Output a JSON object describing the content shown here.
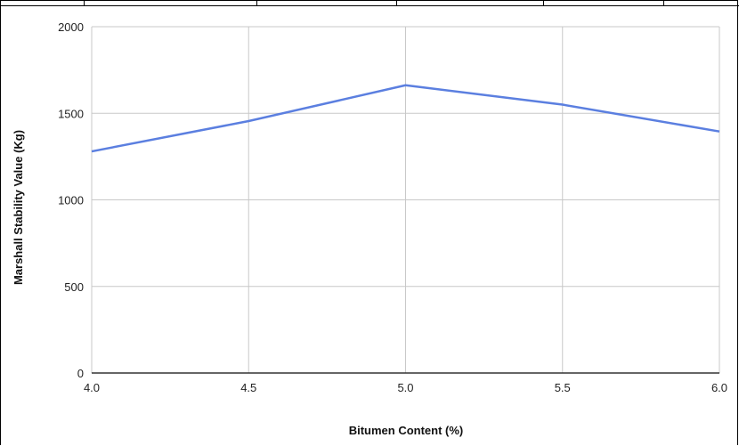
{
  "chart_data": {
    "type": "line",
    "x": [
      4.0,
      4.5,
      5.0,
      5.5,
      6.0
    ],
    "series": [
      {
        "values": [
          1280,
          1455,
          1662,
          1550,
          1395
        ],
        "color": "#5b7fe0"
      }
    ],
    "xlabel": "Bitumen Content  (%)",
    "ylabel": "Marshall Stability Value  (Kg)",
    "xlim": [
      4.0,
      6.0
    ],
    "ylim": [
      0,
      2000
    ],
    "xticks": [
      "4.0",
      "4.5",
      "5.0",
      "5.5",
      "6.0"
    ],
    "yticks": [
      "0",
      "500",
      "1000",
      "1500",
      "2000"
    ],
    "grid": true,
    "legend": "none"
  }
}
